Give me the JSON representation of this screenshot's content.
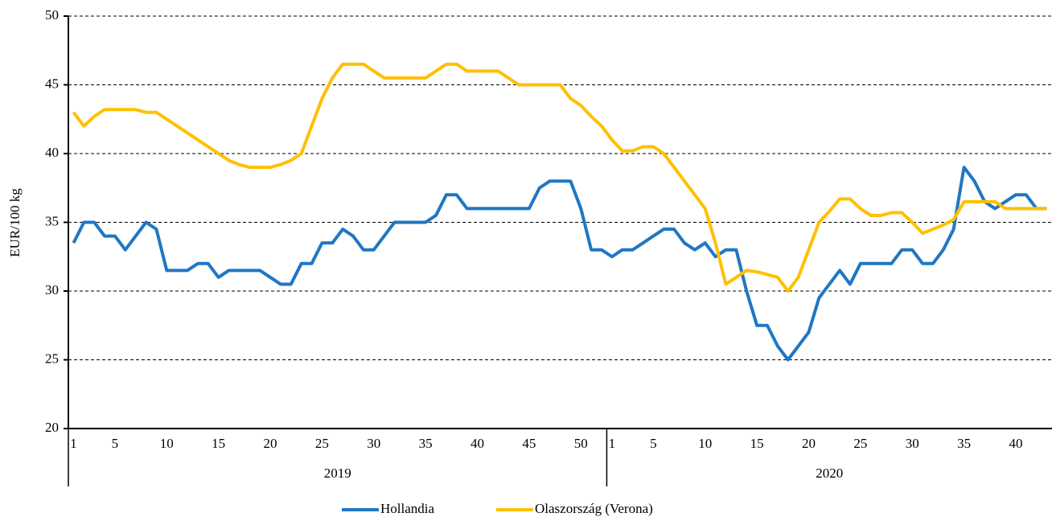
{
  "chart_data": {
    "type": "line",
    "y_label": "EUR/100 kg",
    "categories": [
      "1",
      null,
      null,
      null,
      "5",
      null,
      null,
      null,
      null,
      "10",
      null,
      null,
      null,
      null,
      "15",
      null,
      null,
      null,
      null,
      "20",
      null,
      null,
      null,
      null,
      "25",
      null,
      null,
      null,
      null,
      "30",
      null,
      null,
      null,
      null,
      "35",
      null,
      null,
      null,
      null,
      "40",
      null,
      null,
      null,
      null,
      "45",
      null,
      null,
      null,
      null,
      "50",
      null,
      null,
      "1",
      null,
      null,
      null,
      "5",
      null,
      null,
      null,
      null,
      "10",
      null,
      null,
      null,
      null,
      "15",
      null,
      null,
      null,
      null,
      "20",
      null,
      null,
      null,
      null,
      "25",
      null,
      null,
      null,
      null,
      "30",
      null,
      null,
      null,
      null,
      "35",
      null,
      null,
      null,
      null,
      "40",
      null,
      null,
      null
    ],
    "groups": [
      "2019",
      "2020"
    ],
    "series": [
      {
        "name": "Hollandia",
        "color": "#1f77c4",
        "values": [
          33.5,
          35,
          35,
          34,
          34,
          33,
          34,
          35,
          34.5,
          31.5,
          31.5,
          31.5,
          32,
          32,
          31,
          31.5,
          31.5,
          31.5,
          31.5,
          31,
          30.5,
          30.5,
          32,
          32,
          33.5,
          33.5,
          34.5,
          34,
          33,
          33,
          34,
          35,
          35,
          35,
          35,
          35.5,
          37,
          37,
          36,
          36,
          36,
          36,
          36,
          36,
          36,
          37.5,
          38,
          38,
          38,
          36,
          33,
          33,
          32.5,
          33,
          33,
          33.5,
          34,
          34.5,
          34.5,
          33.5,
          33,
          33.5,
          32.5,
          33,
          33,
          30,
          27.5,
          27.5,
          26,
          25,
          26,
          27,
          29.5,
          30.5,
          31.5,
          30.5,
          32,
          32,
          32,
          32,
          33,
          33,
          32,
          32,
          33,
          34.5,
          39,
          38,
          36.5,
          36,
          36.5,
          37,
          37,
          36,
          36
        ]
      },
      {
        "name": "Olaszország (Verona)",
        "color": "#ffc000",
        "values": [
          43,
          42,
          42.7,
          43.2,
          43.2,
          43.2,
          43.2,
          43,
          43,
          42.5,
          42,
          41.5,
          41,
          40.5,
          40,
          39.5,
          39.2,
          39,
          39,
          39,
          39.2,
          39.5,
          40,
          42,
          44,
          45.5,
          46.5,
          46.5,
          46.5,
          46,
          45.5,
          45.5,
          45.5,
          45.5,
          45.5,
          46,
          46.5,
          46.5,
          46,
          46,
          46,
          46,
          45.5,
          45,
          45,
          45,
          45,
          45,
          44,
          43.5,
          42.7,
          42,
          41,
          40.2,
          40.2,
          40.5,
          40.5,
          40,
          39,
          38,
          37,
          36,
          33.5,
          30.5,
          31,
          31.5,
          31.4,
          31.2,
          31,
          30,
          31,
          33,
          35,
          35.8,
          36.7,
          36.7,
          36,
          35.5,
          35.5,
          35.7,
          35.7,
          35,
          34.2,
          34.5,
          34.8,
          35.2,
          36.5,
          36.5,
          36.5,
          36.5,
          36,
          36,
          36,
          36,
          36
        ]
      }
    ],
    "ylim": [
      20,
      50
    ],
    "yticks": [
      20,
      25,
      30,
      35,
      40,
      45,
      50
    ],
    "grid": true,
    "legend": "bottom"
  }
}
